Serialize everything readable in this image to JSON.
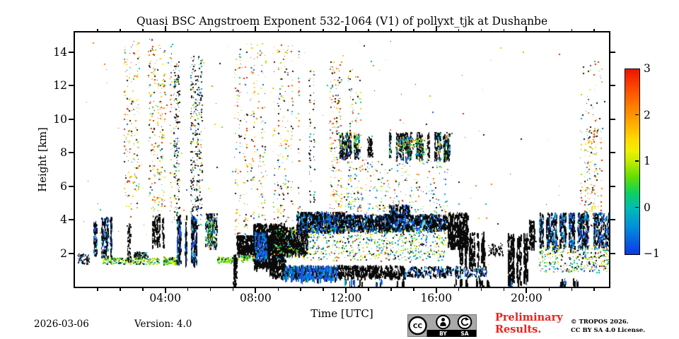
{
  "chart_data": {
    "type": "scatter",
    "title": "Quasi BSC Angstroem Exponent 532-1064 (V1) of pollyxt_tjk at Dushanbe",
    "xlabel": "Time [UTC]",
    "ylabel": "Height [km]",
    "grid": false,
    "axes": {
      "t_min": 0,
      "t_max": 23.65,
      "h_min": 0,
      "h_max": 15.17,
      "x_major": [
        {
          "t": 4,
          "label": "04:00"
        },
        {
          "t": 8,
          "label": "08:00"
        },
        {
          "t": 12,
          "label": "12:00"
        },
        {
          "t": 16,
          "label": "16:00"
        },
        {
          "t": 20,
          "label": "20:00"
        }
      ],
      "x_minor_hours": [
        1,
        2,
        3,
        5,
        6,
        7,
        9,
        10,
        11,
        13,
        14,
        15,
        17,
        18,
        19,
        21,
        22,
        23
      ],
      "y_major": [
        {
          "h": 2,
          "label": "2"
        },
        {
          "h": 4,
          "label": "4"
        },
        {
          "h": 6,
          "label": "6"
        },
        {
          "h": 8,
          "label": "8"
        },
        {
          "h": 10,
          "label": "10"
        },
        {
          "h": 12,
          "label": "12"
        },
        {
          "h": 14,
          "label": "14"
        }
      ]
    },
    "colorbar": {
      "min": -1,
      "max": 3,
      "ticks": [
        {
          "v": 3,
          "label": "3",
          "mark": false
        },
        {
          "v": 2,
          "label": "2",
          "mark": true
        },
        {
          "v": 1,
          "label": "1",
          "mark": true
        },
        {
          "v": 0,
          "label": "0",
          "mark": true
        },
        {
          "v": -1,
          "label": "−1",
          "mark": false
        }
      ],
      "gradient": [
        [
          "#ee1300",
          0
        ],
        [
          "#ff5500",
          12.5
        ],
        [
          "#ff9500",
          25
        ],
        [
          "#ffd800",
          37.5
        ],
        [
          "#f0f000",
          44
        ],
        [
          "#c0ec00",
          50
        ],
        [
          "#63e000",
          58
        ],
        [
          "#0cd060",
          67
        ],
        [
          "#00bcb4",
          75
        ],
        [
          "#0090dc",
          85
        ],
        [
          "#0d38e8",
          100
        ]
      ]
    },
    "palettes": {
      "warm": [
        [
          "#e32400",
          3
        ],
        [
          "#ff7a00",
          3
        ],
        [
          "#ffc800",
          3
        ],
        [
          "#f2ee00",
          2
        ],
        [
          "#86e400",
          1.2
        ],
        [
          "#00c87d",
          1
        ],
        [
          "#00a0d8",
          1
        ],
        [
          "#1c52e8",
          0.9
        ],
        [
          "#111111",
          2.8
        ]
      ],
      "mixed": [
        [
          "#111111",
          2.5
        ],
        [
          "#e32400",
          1.2
        ],
        [
          "#ff7a00",
          1.2
        ],
        [
          "#ffc800",
          1.2
        ],
        [
          "#f2ee00",
          1
        ],
        [
          "#86e400",
          1
        ],
        [
          "#00c87d",
          1
        ],
        [
          "#00a0d8",
          1
        ],
        [
          "#1c52e8",
          0.8
        ]
      ],
      "blackmix": [
        [
          "#111111",
          8
        ],
        [
          "#00c87d",
          0.8
        ],
        [
          "#86e400",
          0.6
        ],
        [
          "#00a0d8",
          0.8
        ],
        [
          "#1c52e8",
          0.7
        ],
        [
          "#ffc800",
          0.4
        ],
        [
          "#ff7a00",
          0.3
        ]
      ],
      "black": [
        [
          "#0a0a0a",
          1
        ]
      ],
      "blackblue": [
        [
          "#0a0a0a",
          6
        ],
        [
          "#1c52e8",
          1.6
        ],
        [
          "#0080e0",
          0.9
        ],
        [
          "#00b4c8",
          0.5
        ]
      ],
      "blue": [
        [
          "#1c52e8",
          3
        ],
        [
          "#0080e0",
          2
        ],
        [
          "#00b4c8",
          1
        ],
        [
          "#0a0a0a",
          1
        ]
      ],
      "coolmix": [
        [
          "#111111",
          2.2
        ],
        [
          "#00c87d",
          1.6
        ],
        [
          "#86e400",
          1.6
        ],
        [
          "#00a0d8",
          1.4
        ],
        [
          "#f2ee00",
          1
        ],
        [
          "#1c52e8",
          1
        ],
        [
          "#ffc800",
          0.5
        ],
        [
          "#ff7a00",
          0.35
        ],
        [
          "#e32400",
          0.25
        ]
      ],
      "greenlayer": [
        [
          "#86e400",
          3
        ],
        [
          "#f2ee00",
          2
        ],
        [
          "#35d400",
          2
        ],
        [
          "#00c87d",
          1.5
        ],
        [
          "#111111",
          2
        ],
        [
          "#00a0d8",
          0.8
        ],
        [
          "#ff7a00",
          0.4
        ]
      ]
    },
    "speckle_regions": [
      {
        "t0": 2.15,
        "t1": 3.5,
        "h0": 4.5,
        "h1": 14.8,
        "n": 400,
        "pal": "warm",
        "binw": 0.1,
        "keep": 0.6
      },
      {
        "t0": 3.5,
        "t1": 4.35,
        "h0": 4.5,
        "h1": 14.5,
        "n": 280,
        "pal": "warm",
        "binw": 0.1,
        "keep": 0.6
      },
      {
        "t0": 4.35,
        "t1": 4.65,
        "h0": 4.0,
        "h1": 13.5,
        "n": 170,
        "pal": "blackmix",
        "binw": 0.09,
        "keep": 0.8
      },
      {
        "t0": 5.0,
        "t1": 5.6,
        "h0": 3.6,
        "h1": 13.8,
        "n": 360,
        "pal": "blackmix",
        "binw": 0.09,
        "keep": 0.75
      },
      {
        "t0": 6.55,
        "t1": 10.35,
        "h0": 2.6,
        "h1": 14.6,
        "n": 1000,
        "pal": "warm",
        "binw": 0.1,
        "keep": 0.5
      },
      {
        "t0": 10.35,
        "t1": 10.75,
        "h0": 5.0,
        "h1": 13.0,
        "n": 130,
        "pal": "blackmix",
        "binw": 0.09,
        "keep": 0.8
      },
      {
        "t0": 11.0,
        "t1": 11.85,
        "h0": 3.0,
        "h1": 13.5,
        "n": 280,
        "pal": "warm",
        "binw": 0.09,
        "keep": 0.6
      },
      {
        "t0": 12.05,
        "t1": 12.65,
        "h0": 4.5,
        "h1": 13.0,
        "n": 110,
        "pal": "mixed",
        "binw": 0.09,
        "keep": 0.7
      },
      {
        "t0": 22.35,
        "t1": 23.45,
        "h0": 3.5,
        "h1": 9.5,
        "n": 280,
        "pal": "warm",
        "binw": 0.09,
        "keep": 0.65
      },
      {
        "t0": 22.35,
        "t1": 23.45,
        "h0": 9.5,
        "h1": 13.5,
        "n": 35,
        "pal": "mixed"
      },
      {
        "t0": 0.2,
        "t1": 23.6,
        "h0": 1.2,
        "h1": 14.9,
        "n": 190,
        "pal": "mixed"
      },
      {
        "t0": 11.7,
        "t1": 12.65,
        "h0": 7.7,
        "h1": 9.2,
        "n": 300,
        "pal": "blackmix",
        "dash": [
          2,
          5
        ],
        "binw": 0.09,
        "keep": 0.8
      },
      {
        "t0": 12.95,
        "t1": 13.15,
        "h0": 7.8,
        "h1": 9.0,
        "n": 70,
        "pal": "black",
        "dash": [
          2,
          4
        ]
      },
      {
        "t0": 13.9,
        "t1": 16.55,
        "h0": 7.6,
        "h1": 9.25,
        "n": 850,
        "pal": "blackmix",
        "dash": [
          2,
          6
        ],
        "binw": 0.1,
        "keep": 0.7
      },
      {
        "t0": 14.2,
        "t1": 15.6,
        "h0": 7.9,
        "h1": 8.9,
        "n": 170,
        "pal": "coolmix"
      },
      {
        "t0": 12.0,
        "t1": 16.5,
        "h0": 5.8,
        "h1": 7.6,
        "n": 140,
        "pal": "mixed"
      },
      {
        "t0": 11.9,
        "t1": 16.5,
        "h0": 4.3,
        "h1": 5.8,
        "n": 170,
        "pal": "coolmix"
      },
      {
        "t0": 0.1,
        "t1": 0.6,
        "h0": 1.4,
        "h1": 2.0,
        "n": 60,
        "pal": "blackblue",
        "dash": [
          1,
          3
        ]
      },
      {
        "t0": 0.65,
        "t1": 1.05,
        "h0": 1.9,
        "h1": 3.9,
        "n": 190,
        "pal": "blackblue",
        "dash": [
          2,
          6
        ],
        "binw": 0.08,
        "keep": 0.7
      },
      {
        "t0": 1.15,
        "t1": 1.65,
        "h0": 1.8,
        "h1": 4.2,
        "n": 230,
        "pal": "blackblue",
        "dash": [
          2,
          6
        ],
        "binw": 0.08,
        "keep": 0.7
      },
      {
        "t0": 1.2,
        "t1": 3.7,
        "h0": 1.38,
        "h1": 1.75,
        "n": 240,
        "pal": "greenlayer"
      },
      {
        "t0": 2.3,
        "t1": 2.45,
        "h0": 1.5,
        "h1": 3.8,
        "n": 70,
        "pal": "black",
        "dash": [
          1,
          4
        ]
      },
      {
        "t0": 2.6,
        "t1": 3.2,
        "h0": 1.7,
        "h1": 2.1,
        "n": 90,
        "pal": "blackmix",
        "dash": [
          1,
          3
        ]
      },
      {
        "t0": 3.4,
        "t1": 4.1,
        "h0": 2.4,
        "h1": 4.35,
        "n": 220,
        "pal": "black",
        "dash": [
          2,
          6
        ],
        "binw": 0.09,
        "keep": 0.6
      },
      {
        "t0": 3.9,
        "t1": 4.5,
        "h0": 1.35,
        "h1": 1.8,
        "n": 150,
        "pal": "greenlayer"
      },
      {
        "t0": 4.5,
        "t1": 5.4,
        "h0": 1.4,
        "h1": 4.3,
        "n": 480,
        "pal": "blackblue",
        "dash": [
          3,
          8
        ],
        "binw": 0.09,
        "keep": 0.75
      },
      {
        "t0": 5.75,
        "t1": 6.3,
        "h0": 2.4,
        "h1": 4.4,
        "n": 200,
        "pal": "blackmix",
        "dash": [
          2,
          6
        ],
        "binw": 0.09,
        "keep": 0.7
      },
      {
        "t0": 6.3,
        "t1": 7.2,
        "h0": 1.45,
        "h1": 1.8,
        "n": 140,
        "pal": "greenlayer"
      },
      {
        "t0": 7.0,
        "t1": 7.15,
        "h0": 0.2,
        "h1": 2.0,
        "n": 80,
        "pal": "black",
        "dash": [
          2,
          6
        ]
      },
      {
        "t0": 7.15,
        "t1": 7.9,
        "h0": 1.9,
        "h1": 3.1,
        "n": 300,
        "pal": "black",
        "dash": [
          2,
          6
        ]
      },
      {
        "t0": 7.3,
        "t1": 7.9,
        "h0": 1.5,
        "h1": 1.9,
        "n": 80,
        "pal": "greenlayer"
      },
      {
        "t0": 7.9,
        "t1": 9.3,
        "h0": 1.2,
        "h1": 3.8,
        "n": 800,
        "pal": "black",
        "dash": [
          3,
          8
        ]
      },
      {
        "t0": 7.95,
        "t1": 8.5,
        "h0": 1.7,
        "h1": 3.3,
        "n": 170,
        "pal": "blue",
        "dash": [
          2,
          6
        ]
      },
      {
        "t0": 8.8,
        "t1": 10.3,
        "h0": 2.0,
        "h1": 3.6,
        "n": 520,
        "pal": "black",
        "dash": [
          3,
          7
        ]
      },
      {
        "t0": 9.8,
        "t1": 11.9,
        "h0": 3.3,
        "h1": 4.5,
        "n": 700,
        "pal": "blackblue",
        "dash": [
          2,
          6
        ]
      },
      {
        "t0": 11.9,
        "t1": 16.45,
        "h0": 3.4,
        "h1": 4.35,
        "n": 1050,
        "pal": "blackblue",
        "dash": [
          2,
          6
        ]
      },
      {
        "t0": 13.9,
        "t1": 14.8,
        "h0": 4.2,
        "h1": 4.95,
        "n": 180,
        "pal": "blackblue",
        "dash": [
          2,
          5
        ]
      },
      {
        "t0": 8.8,
        "t1": 16.4,
        "h0": 1.6,
        "h1": 3.5,
        "n": 850,
        "pal": "coolmix"
      },
      {
        "t0": 8.6,
        "t1": 14.6,
        "h0": 0.6,
        "h1": 1.3,
        "n": 850,
        "pal": "black",
        "dash": [
          2,
          6
        ]
      },
      {
        "t0": 9.2,
        "t1": 11.6,
        "h0": 0.5,
        "h1": 1.3,
        "n": 280,
        "pal": "blue",
        "dash": [
          3,
          9
        ]
      },
      {
        "t0": 14.6,
        "t1": 18.2,
        "h0": 0.65,
        "h1": 1.25,
        "n": 300,
        "pal": "blackblue",
        "dash": [
          2,
          5
        ]
      },
      {
        "t0": 16.5,
        "t1": 17.4,
        "h0": 2.4,
        "h1": 4.45,
        "n": 340,
        "pal": "black",
        "dash": [
          3,
          8
        ],
        "binw": 0.09,
        "keep": 0.85
      },
      {
        "t0": 16.9,
        "t1": 18.2,
        "h0": 1.4,
        "h1": 3.3,
        "n": 420,
        "pal": "black",
        "dash": [
          3,
          8
        ],
        "binw": 0.09,
        "keep": 0.8
      },
      {
        "t0": 18.3,
        "t1": 18.95,
        "h0": 1.9,
        "h1": 2.6,
        "n": 80,
        "pal": "black",
        "dash": [
          1,
          3
        ]
      },
      {
        "t0": 19.15,
        "t1": 20.0,
        "h0": 0.3,
        "h1": 3.2,
        "n": 380,
        "pal": "black",
        "dash": [
          3,
          9
        ],
        "binw": 0.1,
        "keep": 0.6
      },
      {
        "t0": 20.0,
        "t1": 20.45,
        "h0": 2.3,
        "h1": 4.0,
        "n": 170,
        "pal": "black",
        "dash": [
          2,
          6
        ],
        "binw": 0.09,
        "keep": 0.7
      },
      {
        "t0": 20.55,
        "t1": 23.65,
        "h0": 2.4,
        "h1": 4.45,
        "n": 1100,
        "pal": "blackblue",
        "dash": [
          2,
          7
        ],
        "binw": 0.1,
        "keep": 0.8
      },
      {
        "t0": 20.5,
        "t1": 23.65,
        "h0": 0.9,
        "h1": 2.5,
        "n": 420,
        "pal": "coolmix"
      },
      {
        "t0": 16.55,
        "t1": 18.4,
        "h0": 0.0,
        "h1": 0.55,
        "n": 120,
        "pal": "black",
        "dash": [
          5,
          12
        ],
        "binw": 0.12,
        "keep": 0.4
      },
      {
        "t0": 11.8,
        "t1": 14.6,
        "h0": 0.0,
        "h1": 0.5,
        "n": 100,
        "pal": "blackblue",
        "dash": [
          5,
          12
        ],
        "binw": 0.12,
        "keep": 0.4
      },
      {
        "t0": 19.2,
        "t1": 22.4,
        "h0": 0.0,
        "h1": 0.55,
        "n": 110,
        "pal": "blackblue",
        "dash": [
          5,
          12
        ],
        "binw": 0.15,
        "keep": 0.35
      }
    ]
  },
  "footer": {
    "date": "2026-03-06",
    "version": "Version: 4.0",
    "preliminary_line1": "Preliminary",
    "preliminary_line2": "Results.",
    "copyright_line1": "© TROPOS 2026.",
    "copyright_line2": "CC BY SA 4.0 License.",
    "license_badge": {
      "cc": "CC",
      "by": "BY",
      "sa": "SA"
    }
  }
}
